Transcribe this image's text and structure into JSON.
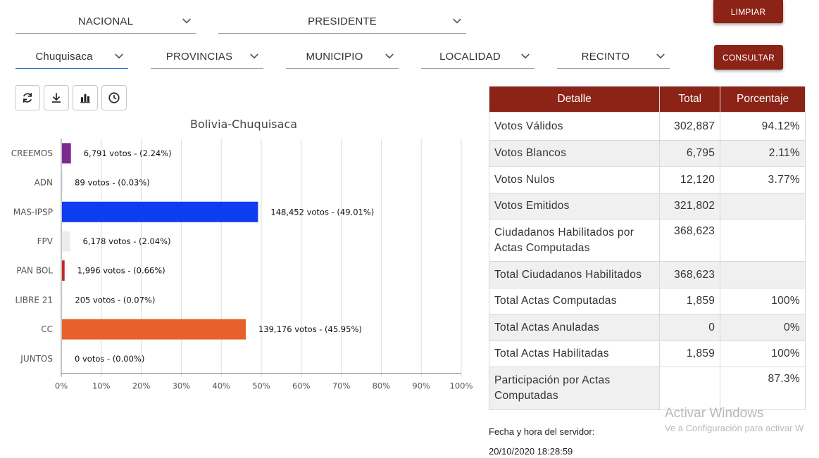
{
  "filters": {
    "row1": [
      {
        "value": "NACIONAL"
      },
      {
        "value": "PRESIDENTE"
      }
    ],
    "row2": [
      {
        "value": "Chuquisaca"
      },
      {
        "value": "PROVINCIAS"
      },
      {
        "value": "MUNICIPIO"
      },
      {
        "value": "LOCALIDAD"
      },
      {
        "value": "RECINTO"
      }
    ]
  },
  "buttons": {
    "clear": "LIMPIAR",
    "query": "CONSULTAR"
  },
  "toolbar": [
    "refresh-icon",
    "download-icon",
    "bar-chart-icon",
    "clock-icon"
  ],
  "chart_data": {
    "type": "bar",
    "orientation": "horizontal",
    "title": "Bolivia-Chuquisaca",
    "categories": [
      "CREEMOS",
      "ADN",
      "MAS-IPSP",
      "FPV",
      "PAN BOL",
      "LIBRE 21",
      "CC",
      "JUNTOS"
    ],
    "values": [
      2.24,
      0.03,
      49.01,
      2.04,
      0.66,
      0.07,
      45.95,
      0.0
    ],
    "labels": [
      "6,791 votos - (2.24%)",
      "89 votos - (0.03%)",
      "148,452 votos - (49.01%)",
      "6,178 votos - (2.04%)",
      "1,996 votos - (0.66%)",
      "205 votos - (0.07%)",
      "139,176 votos - (45.95%)",
      "0 votos - (0.00%)"
    ],
    "colors": [
      "#7b2a8f",
      "#1565c0",
      "#0d3df0",
      "#ececec",
      "#c62828",
      "#d9d9d9",
      "#e8612c",
      "#cccccc"
    ],
    "xlim": [
      0,
      100
    ],
    "xticks": [
      "0%",
      "10%",
      "20%",
      "30%",
      "40%",
      "50%",
      "60%",
      "70%",
      "80%",
      "90%",
      "100%"
    ],
    "grid": true
  },
  "table": {
    "headers": [
      "Detalle",
      "Total",
      "Porcentaje"
    ],
    "rows": [
      {
        "detalle": "Votos Válidos",
        "total": "302,887",
        "pct": "94.12%"
      },
      {
        "detalle": "Votos Blancos",
        "total": "6,795",
        "pct": "2.11%"
      },
      {
        "detalle": "Votos Nulos",
        "total": "12,120",
        "pct": "3.77%"
      },
      {
        "detalle": "Votos Emitidos",
        "total": "321,802",
        "pct": ""
      },
      {
        "detalle": "Ciudadanos Habilitados por Actas Computadas",
        "total": "368,623",
        "pct": ""
      },
      {
        "detalle": "Total Ciudadanos Habilitados",
        "total": "368,623",
        "pct": ""
      },
      {
        "detalle": "Total Actas Computadas",
        "total": "1,859",
        "pct": "100%"
      },
      {
        "detalle": "Total Actas Anuladas",
        "total": "0",
        "pct": "0%"
      },
      {
        "detalle": "Total Actas Habilitadas",
        "total": "1,859",
        "pct": "100%"
      },
      {
        "detalle": "Participación por Actas Computadas",
        "total": "",
        "pct": "87.3%"
      }
    ]
  },
  "server": {
    "label": "Fecha y hora del servidor:",
    "datetime": "20/10/2020 18:28:59"
  },
  "watermark": {
    "title": "Activar Windows",
    "subtitle": "Ve a Configuración para activar W"
  }
}
